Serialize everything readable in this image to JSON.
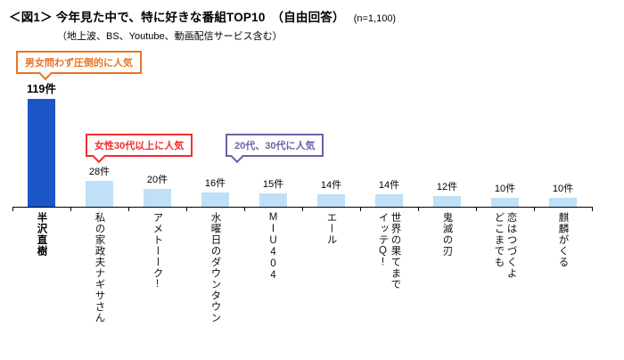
{
  "header": {
    "title": "＜図1＞ 今年見た中で、特に好きな番組TOP10　（自由回答）",
    "n_label": "(n=1,100)",
    "subtitle": "（地上波、BS、Youtube、動画配信サービス含む）"
  },
  "chart_data": {
    "type": "bar",
    "title": "今年見た中で、特に好きな番組TOP10（自由回答）",
    "unit": "件",
    "n": 1100,
    "categories": [
      "半沢直樹",
      "私の家政夫ナギサさん",
      "アメトーーク!",
      "水曜日のダウンタウン",
      "MIU404",
      "エール",
      "世界の果てまでイッテQ!",
      "鬼滅の刃",
      "恋はつづくよどこまでも",
      "麒麟がくる"
    ],
    "display_labels": [
      "半沢直樹",
      "私の家政夫ナギサさん",
      "アメトーーク!",
      "水曜日のダウンタウン",
      "MIU404",
      "エール",
      "世界の果てまで\nイッテQ!",
      "鬼滅の刃",
      "恋はつづくよ\nどこまでも",
      "麒麟がくる"
    ],
    "values": [
      119,
      28,
      20,
      16,
      15,
      14,
      14,
      12,
      10,
      10
    ],
    "value_labels": [
      "119件",
      "28件",
      "20件",
      "16件",
      "15件",
      "14件",
      "14件",
      "12件",
      "10件",
      "10件"
    ],
    "ylim": [
      0,
      130
    ],
    "grid": false,
    "legend": "none",
    "colors": {
      "highlight": "#1A56C8",
      "normal": "#BFE0F6"
    },
    "annotations": [
      {
        "text": "男女問わず圧倒的に人気",
        "color": "#E97425",
        "target": "半沢直樹",
        "left": 18,
        "top": 57,
        "tail_left": 26
      },
      {
        "text": "女性30代以上に人気",
        "color": "#F62C2C",
        "target": "私の家政夫ナギサさん",
        "left": 96,
        "top": 150,
        "tail_left": 8
      },
      {
        "text": "20代、30代に人気",
        "color": "#6F5FA8",
        "target": "水曜日のダウンタウン",
        "left": 253,
        "top": 150,
        "tail_left": 6
      }
    ]
  }
}
